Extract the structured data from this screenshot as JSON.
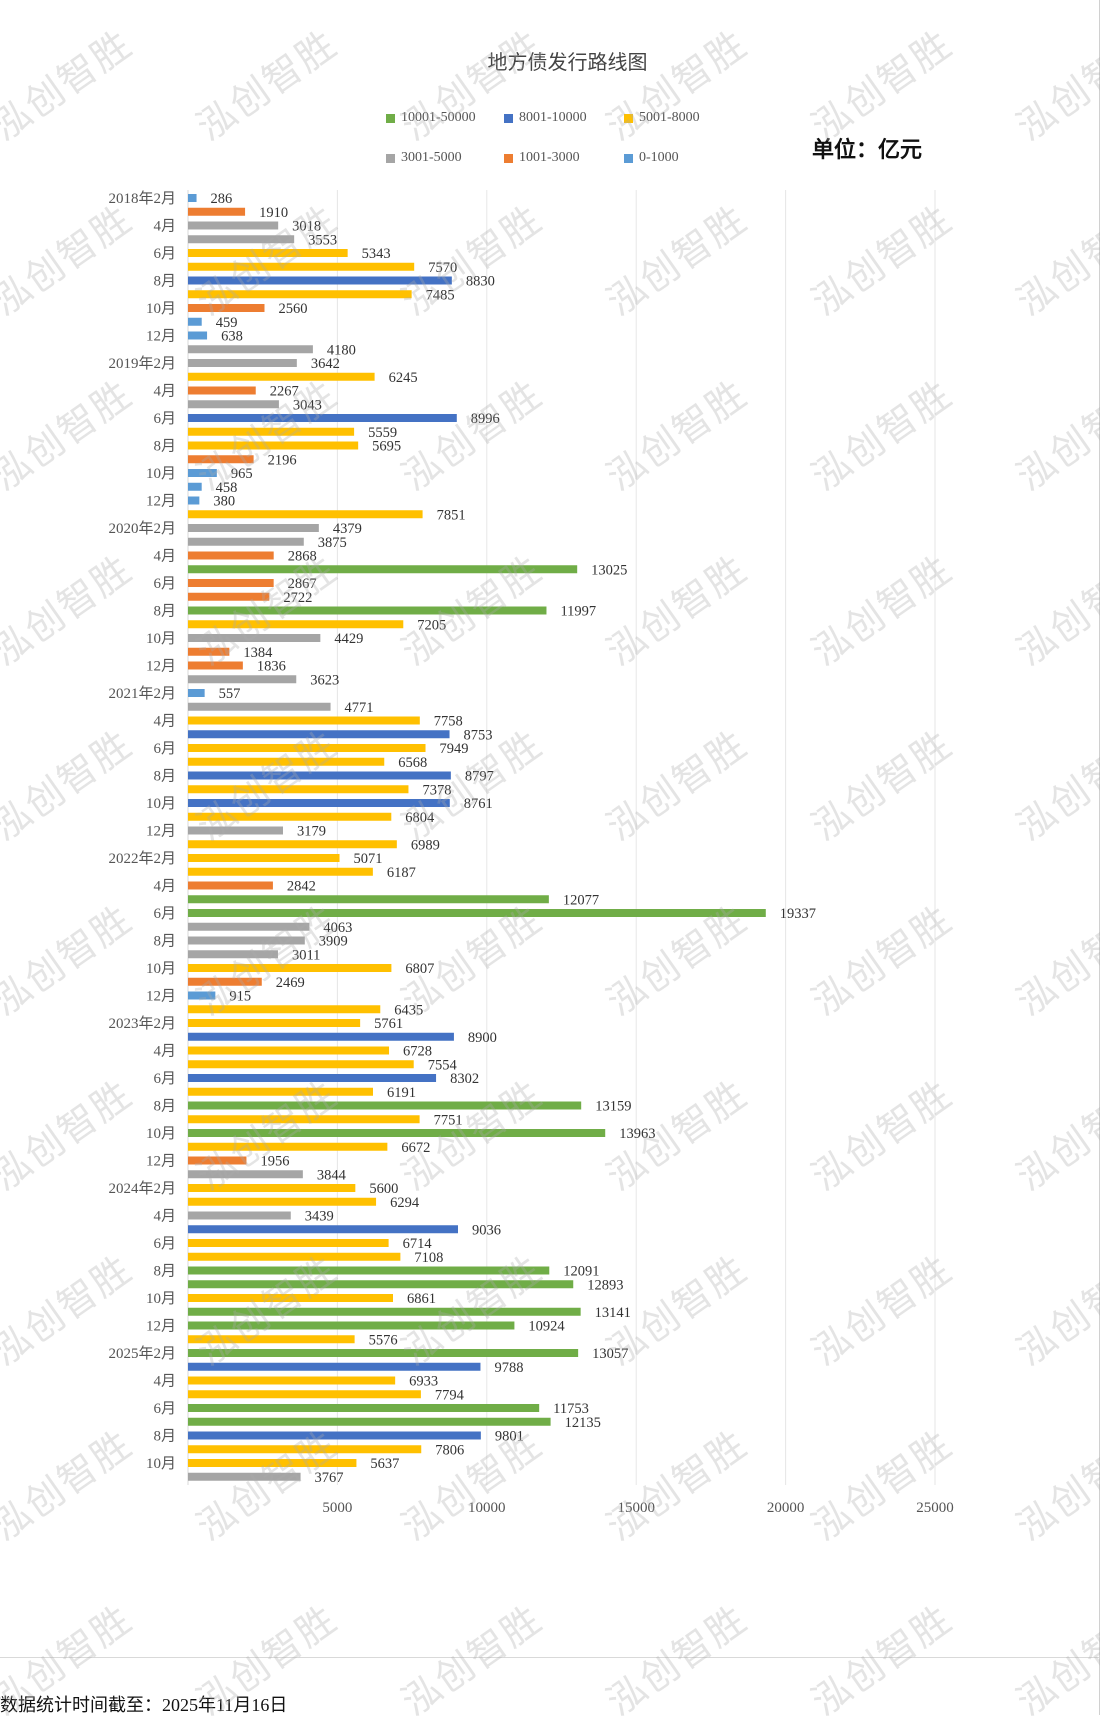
{
  "watermark": "泓创智胜",
  "unit_label": "单位：亿元",
  "footer": "数据统计时间截至：2025年11月16日",
  "chart_data": {
    "type": "bar",
    "orientation": "horizontal",
    "title": "地方债发行路线图",
    "xlabel": "",
    "ylabel": "",
    "xlim": [
      0,
      25000
    ],
    "x_ticks": [
      "5000",
      "10000",
      "15000",
      "20000",
      "25000"
    ],
    "x_tick_values": [
      5000,
      10000,
      15000,
      20000,
      25000
    ],
    "grid": true,
    "legend": [
      {
        "label": "10001-50000",
        "min": 10001,
        "max": 50000,
        "color": "#70AD47"
      },
      {
        "label": "8001-10000",
        "min": 8001,
        "max": 10000,
        "color": "#4472C4"
      },
      {
        "label": "5001-8000",
        "min": 5001,
        "max": 8000,
        "color": "#FFC000"
      },
      {
        "label": "3001-5000",
        "min": 3001,
        "max": 5000,
        "color": "#A5A5A5"
      },
      {
        "label": "1001-3000",
        "min": 1001,
        "max": 3000,
        "color": "#ED7D31"
      },
      {
        "label": "0-1000",
        "min": 0,
        "max": 1000,
        "color": "#5B9BD5"
      }
    ],
    "legend_position": "top",
    "tick_labels": [
      "2018年2月",
      "4月",
      "6月",
      "8月",
      "10月",
      "12月",
      "2019年2月",
      "4月",
      "6月",
      "8月",
      "10月",
      "12月",
      "2020年2月",
      "4月",
      "6月",
      "8月",
      "10月",
      "12月",
      "2021年2月",
      "4月",
      "6月",
      "8月",
      "10月",
      "12月",
      "2022年2月",
      "4月",
      "6月",
      "8月",
      "10月",
      "12月",
      "2023年2月",
      "4月",
      "6月",
      "8月",
      "10月",
      "12月",
      "2024年2月",
      "4月",
      "6月",
      "8月",
      "10月",
      "12月",
      "2025年2月",
      "4月",
      "6月",
      "8月",
      "10月"
    ],
    "tick_label_every": 2,
    "values": [
      286,
      1910,
      3018,
      3553,
      5343,
      7570,
      8830,
      7485,
      2560,
      459,
      638,
      4180,
      3642,
      6245,
      2267,
      3043,
      8996,
      5559,
      5695,
      2196,
      965,
      458,
      380,
      7851,
      4379,
      3875,
      2868,
      13025,
      2867,
      2722,
      11997,
      7205,
      4429,
      1384,
      1836,
      3623,
      557,
      4771,
      7758,
      8753,
      7949,
      6568,
      8797,
      7378,
      8761,
      6804,
      3179,
      6989,
      5071,
      6187,
      2842,
      12077,
      19337,
      4063,
      3909,
      3011,
      6807,
      2469,
      915,
      6435,
      5761,
      8900,
      6728,
      7554,
      8302,
      6191,
      13159,
      7751,
      13963,
      6672,
      1956,
      3844,
      5600,
      6294,
      3439,
      9036,
      6714,
      7108,
      12091,
      12893,
      6861,
      13141,
      10924,
      5576,
      13057,
      9788,
      6933,
      7794,
      11753,
      12135,
      9801,
      7806,
      5637,
      3767
    ]
  }
}
